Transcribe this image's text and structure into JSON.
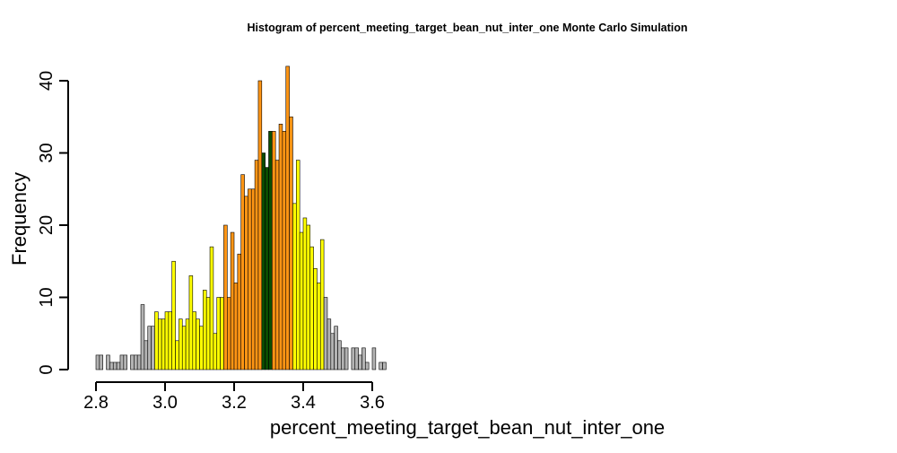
{
  "chart_data": {
    "type": "bar",
    "title": "Histogram of  percent_meeting_target_bean_nut_inter_one  Monte Carlo Simulation",
    "xlabel": "percent_meeting_target_bean_nut_inter_one",
    "ylabel": "Frequency",
    "bin_start": 2.8,
    "bin_width": 0.01,
    "xlim": [
      2.8,
      3.66
    ],
    "ylim": [
      0,
      42
    ],
    "x_ticks": [
      "2.8",
      "3.0",
      "3.2",
      "3.4",
      "3.6"
    ],
    "x_tick_values": [
      2.8,
      3.0,
      3.2,
      3.4,
      3.6
    ],
    "y_ticks": [
      "0",
      "10",
      "20",
      "30",
      "40"
    ],
    "y_tick_values": [
      0,
      10,
      20,
      30,
      40
    ],
    "values": [
      2,
      2,
      0,
      2,
      1,
      1,
      1,
      2,
      2,
      0,
      2,
      2,
      2,
      9,
      4,
      6,
      6,
      8,
      7,
      7,
      8,
      8,
      15,
      4,
      7,
      6,
      7,
      13,
      8,
      7,
      6,
      11,
      10,
      17,
      5,
      10,
      10,
      20,
      10,
      19,
      12,
      16,
      27,
      24,
      25,
      25,
      29,
      40,
      30,
      28,
      33,
      33,
      29,
      34,
      33,
      42,
      35,
      23,
      29,
      19,
      21,
      20,
      17,
      14,
      12,
      18,
      10,
      7,
      5,
      6,
      4,
      3,
      3,
      0,
      3,
      3,
      2,
      3,
      1,
      0,
      3,
      0,
      1,
      1
    ],
    "colors": {
      "gray": "#b3b3b3",
      "yellow": "#ffff00",
      "orange": "#ff9514",
      "darkgreen": "#0b4d02",
      "outline": "#000000"
    },
    "color_sequence": [
      "gray",
      "gray",
      "gray",
      "gray",
      "gray",
      "gray",
      "gray",
      "gray",
      "gray",
      "gray",
      "gray",
      "gray",
      "gray",
      "gray",
      "gray",
      "gray",
      "gray",
      "yellow",
      "yellow",
      "yellow",
      "yellow",
      "yellow",
      "yellow",
      "yellow",
      "yellow",
      "yellow",
      "yellow",
      "yellow",
      "yellow",
      "yellow",
      "yellow",
      "yellow",
      "yellow",
      "yellow",
      "yellow",
      "yellow",
      "yellow",
      "orange",
      "orange",
      "orange",
      "orange",
      "orange",
      "orange",
      "orange",
      "orange",
      "orange",
      "orange",
      "orange",
      "darkgreen",
      "darkgreen",
      "darkgreen",
      "orange",
      "orange",
      "orange",
      "orange",
      "orange",
      "orange",
      "yellow",
      "yellow",
      "yellow",
      "yellow",
      "yellow",
      "yellow",
      "yellow",
      "yellow",
      "yellow",
      "gray",
      "gray",
      "gray",
      "gray",
      "gray",
      "gray",
      "gray",
      "gray",
      "gray",
      "gray",
      "gray",
      "gray",
      "gray",
      "gray",
      "gray",
      "gray",
      "gray",
      "gray",
      "gray"
    ]
  }
}
